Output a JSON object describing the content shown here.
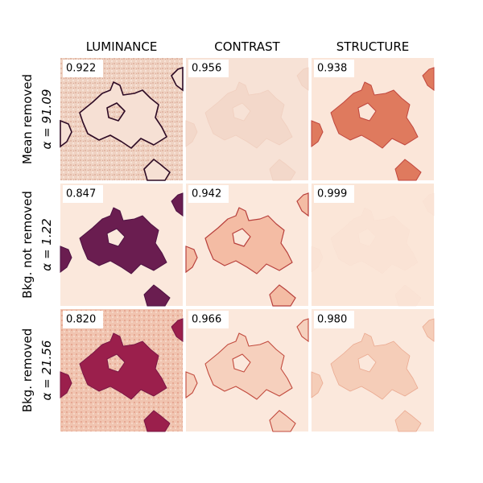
{
  "columns": [
    "LUMINANCE",
    "CONTRAST",
    "STRUCTURE"
  ],
  "rows": [
    {
      "label": "Mean removed",
      "alpha": "α = 91.09",
      "scores": [
        "0.922",
        "0.956",
        "0.938"
      ]
    },
    {
      "label": "Bkg. not removed",
      "alpha": "α = 1.22",
      "scores": [
        "0.847",
        "0.942",
        "0.999"
      ]
    },
    {
      "label": "Bkg. removed",
      "alpha": "α = 21.56",
      "scores": [
        "0.820",
        "0.966",
        "0.980"
      ]
    }
  ]
}
